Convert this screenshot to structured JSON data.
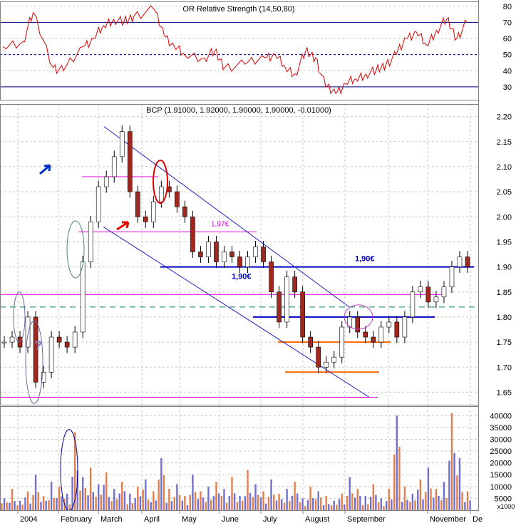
{
  "chart_data": [
    {
      "type": "line",
      "panel": "rsi",
      "title": "OR Relative Strength (14,50,80)",
      "yticks": [
        30,
        40,
        50,
        60,
        70,
        80
      ],
      "ylim": [
        22,
        83
      ],
      "reference_lines": [
        {
          "value": 70,
          "color": "#000080",
          "style": "solid"
        },
        {
          "value": 50,
          "color": "#000080",
          "style": "dashed"
        },
        {
          "value": 30,
          "color": "#000080",
          "style": "solid"
        }
      ],
      "series": [
        {
          "color": "#e00000",
          "x": [
            0,
            2,
            3,
            5,
            6,
            8,
            9,
            10,
            11,
            12,
            13,
            15,
            16,
            17,
            18,
            20,
            21,
            22,
            24,
            26,
            27,
            28,
            29,
            30,
            31,
            32,
            33,
            34,
            35,
            36,
            37,
            38,
            39,
            40,
            41,
            42,
            43,
            44,
            45,
            46
          ],
          "values": [
            55,
            58,
            76,
            42,
            40,
            55,
            60,
            68,
            72,
            70,
            74,
            78,
            62,
            55,
            50,
            48,
            52,
            42,
            44,
            48,
            50,
            42,
            38,
            52,
            48,
            30,
            26,
            32,
            35,
            38,
            40,
            44,
            50,
            60,
            64,
            56,
            65,
            72,
            60,
            70
          ]
        }
      ]
    },
    {
      "type": "candlestick",
      "panel": "price",
      "title": "BCP (1.91000, 1.92000, 1.90000, 1.90000, -0.01000)",
      "yticks": [
        "1.65",
        "1.70",
        "1.75",
        "1.80",
        "1.85",
        "1.90",
        "1.95",
        "2.00",
        "2.05",
        "2.10",
        "2.15",
        "2.20"
      ],
      "ylim": [
        1.625,
        2.225
      ],
      "x_labels": [
        "2004",
        "February",
        "March",
        "April",
        "May",
        "June",
        "July",
        "August",
        "September",
        "",
        "November",
        "De"
      ],
      "closes": [
        1.75,
        1.76,
        1.74,
        1.8,
        1.67,
        1.69,
        1.76,
        1.75,
        1.74,
        1.77,
        1.91,
        1.99,
        2.06,
        2.08,
        2.12,
        2.17,
        2.05,
        2.0,
        1.99,
        2.03,
        2.06,
        2.05,
        2.02,
        2.0,
        1.93,
        1.92,
        1.95,
        1.91,
        1.93,
        1.92,
        1.9,
        1.92,
        1.94,
        1.91,
        1.85,
        1.79,
        1.88,
        1.85,
        1.76,
        1.74,
        1.7,
        1.71,
        1.72,
        1.78,
        1.8,
        1.77,
        1.76,
        1.75,
        1.78,
        1.79,
        1.76,
        1.8,
        1.85,
        1.86,
        1.83,
        1.84,
        1.86,
        1.9,
        1.92,
        1.9
      ],
      "annotations": [
        {
          "text": "1,90€",
          "price": 1.9
        },
        {
          "text": "1,90€",
          "price": 1.9
        },
        {
          "text": "1,97€",
          "price": 1.97
        },
        {
          "text": "?"
        }
      ],
      "horizontal_levels": [
        {
          "price": 1.9,
          "color": "#0000c0"
        },
        {
          "price": 1.8,
          "color": "#0000c0"
        },
        {
          "price": 1.75,
          "color": "#ff6600"
        },
        {
          "price": 1.69,
          "color": "#ff6600"
        },
        {
          "price": 1.97,
          "color": "#e000e0"
        },
        {
          "price": 2.08,
          "color": "#e000e0"
        },
        {
          "price": 1.845,
          "color": "#e000e0"
        },
        {
          "price": 1.64,
          "color": "#e000e0"
        },
        {
          "price": 1.82,
          "color": "#008060"
        }
      ]
    },
    {
      "type": "bar",
      "panel": "volume",
      "yticks": [
        "5000",
        "10000",
        "15000",
        "20000",
        "25000",
        "30000",
        "35000",
        "40000"
      ],
      "ylim": [
        0,
        44000
      ],
      "x_labels": [
        "2004",
        "February",
        "March",
        "April",
        "May",
        "June",
        "July",
        "August",
        "September",
        "",
        "November",
        "De"
      ],
      "scale_label": "x1000",
      "values": [
        5000,
        9000,
        4000,
        8000,
        15000,
        6000,
        12000,
        10000,
        7000,
        33000,
        14000,
        18000,
        11000,
        16000,
        9000,
        12000,
        7000,
        10000,
        13000,
        8000,
        22000,
        9000,
        11000,
        6000,
        15000,
        8000,
        10000,
        12000,
        9000,
        14000,
        6000,
        17000,
        11000,
        8000,
        13000,
        7000,
        9000,
        12000,
        5000,
        10000,
        8000,
        6000,
        4000,
        7000,
        14000,
        9000,
        6000,
        11000,
        5000,
        9000,
        40000,
        10000,
        7000,
        13000,
        18000,
        9000,
        12000,
        41000,
        22000,
        8000
      ],
      "colors": [
        "#7070d0",
        "#e08050"
      ]
    }
  ]
}
